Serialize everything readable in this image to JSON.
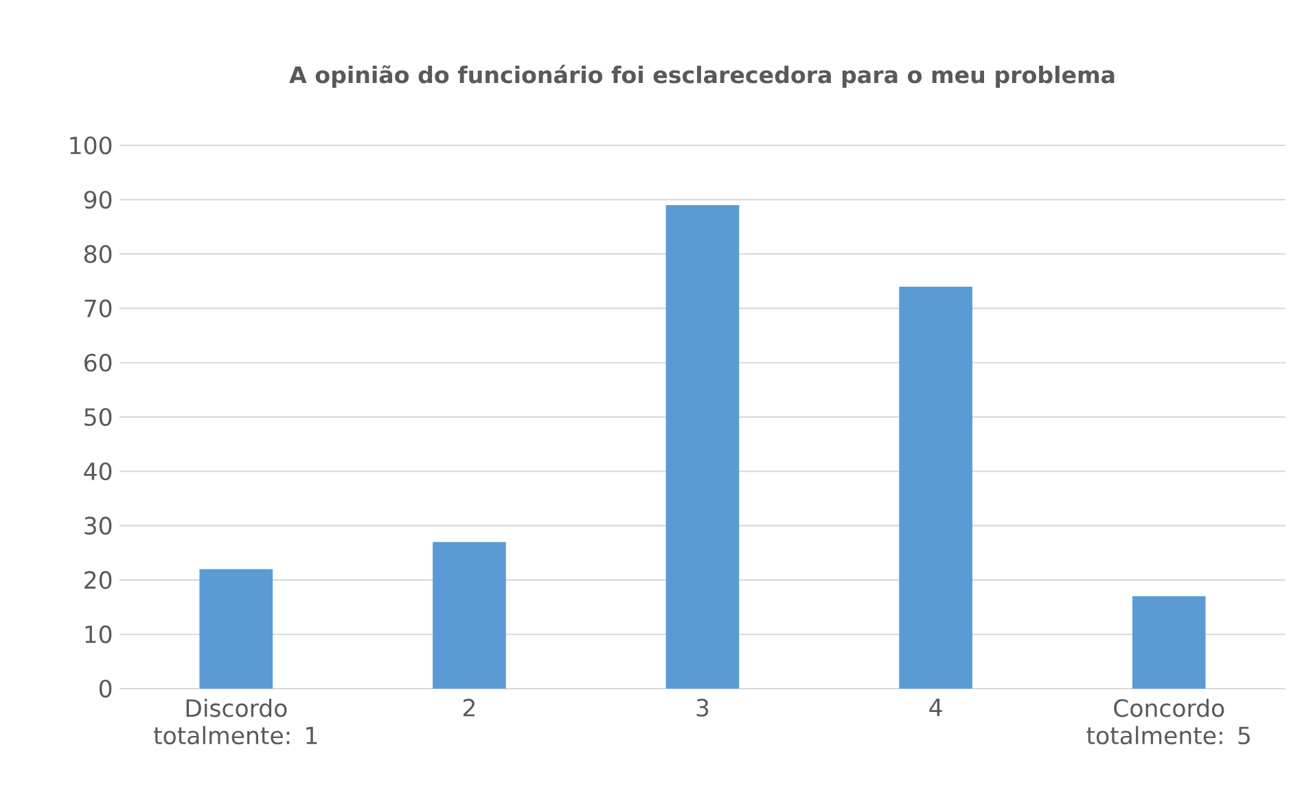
{
  "chart_data": {
    "type": "bar",
    "title": "A opinião do funcionário foi esclarecedora para o meu problema",
    "categories": [
      "Discordo totalmente: 1",
      "2",
      "3",
      "4",
      "Concordo totalmente: 5"
    ],
    "values": [
      22,
      27,
      89,
      74,
      17
    ],
    "color": "#5b9bd5",
    "ylim": [
      0,
      100
    ],
    "yticks": [
      0,
      10,
      20,
      30,
      40,
      50,
      60,
      70,
      80,
      90,
      100
    ],
    "grid": "y"
  }
}
